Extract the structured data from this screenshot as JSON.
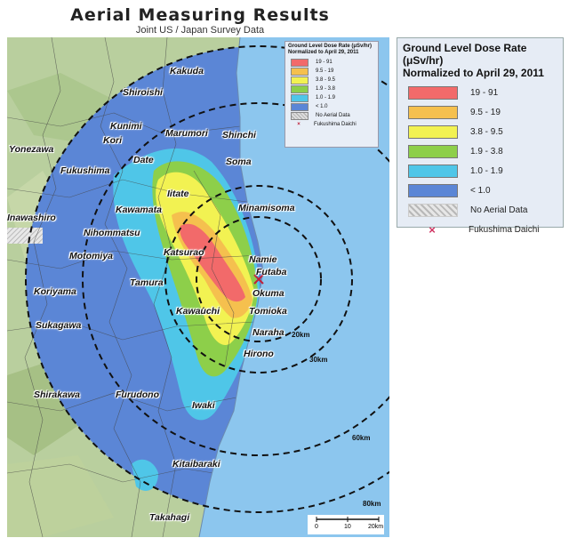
{
  "title": "Aerial Measuring Results",
  "subtitle": "Joint US / Japan Survey Data",
  "legend": {
    "title_line1": "Ground Level Dose Rate (μSv/hr)",
    "title_line2": "Normalized to April 29, 2011",
    "items": [
      {
        "label": "19 - 91",
        "color": "#f26a6a"
      },
      {
        "label": "9.5 - 19",
        "color": "#f5c04e"
      },
      {
        "label": "3.8 - 9.5",
        "color": "#f2f252"
      },
      {
        "label": "1.9 - 3.8",
        "color": "#8dcf4a"
      },
      {
        "label": "1.0 - 1.9",
        "color": "#4fc6e8"
      },
      {
        "label": "< 1.0",
        "color": "#5b86d6"
      }
    ],
    "no_data_label": "No Aerial Data",
    "plant_label": "Fukushima Daichi",
    "plant_icon": "x-mark-icon"
  },
  "mini_legend": {
    "title_line1": "Ground Level Dose Rate (μSv/hr)",
    "title_line2": "Normalized to April 29, 2011",
    "items": [
      "19 - 91",
      "9.5 - 19",
      "3.8 - 9.5",
      "1.9 - 3.8",
      "1.0 - 1.9",
      "< 1.0"
    ],
    "no_data_label": "No Aerial Data",
    "plant_label": "Fukushima Daichi"
  },
  "rings": {
    "r20": "20km",
    "r30": "30km",
    "r60": "60km",
    "r80": "80km"
  },
  "cities": {
    "shiroishi": "Shiroishi",
    "kakuda": "Kakuda",
    "kunimi": "Kunimi",
    "kori": "Kori",
    "yonezawa": "Yonezawa",
    "marumori": "Marumori",
    "shinchi": "Shinchi",
    "date": "Date",
    "fukushima": "Fukushima",
    "soma": "Soma",
    "iitate": "Iitate",
    "kawamata": "Kawamata",
    "minamisoma": "Minamisoma",
    "inawashiro": "Inawashiro",
    "nihonmatsu": "Nihommatsu",
    "motomiya": "Motomiya",
    "katsurao": "Katsurao",
    "namie": "Namie",
    "futaba": "Futaba",
    "okuma": "Okuma",
    "koriyama": "Koriyama",
    "tamura": "Tamura",
    "tomioka": "Tomioka",
    "kawauchi": "Kawauchi",
    "sukagawa": "Sukagawa",
    "naraha": "Naraha",
    "hirono": "Hirono",
    "shirakawa": "Shirakawa",
    "furudono": "Furudono",
    "iwaki": "Iwaki",
    "kitaibaraki": "Kitaibaraki",
    "takahagi": "Takahagi"
  },
  "scale": {
    "t0": "0",
    "t10": "10",
    "t20": "20km"
  }
}
